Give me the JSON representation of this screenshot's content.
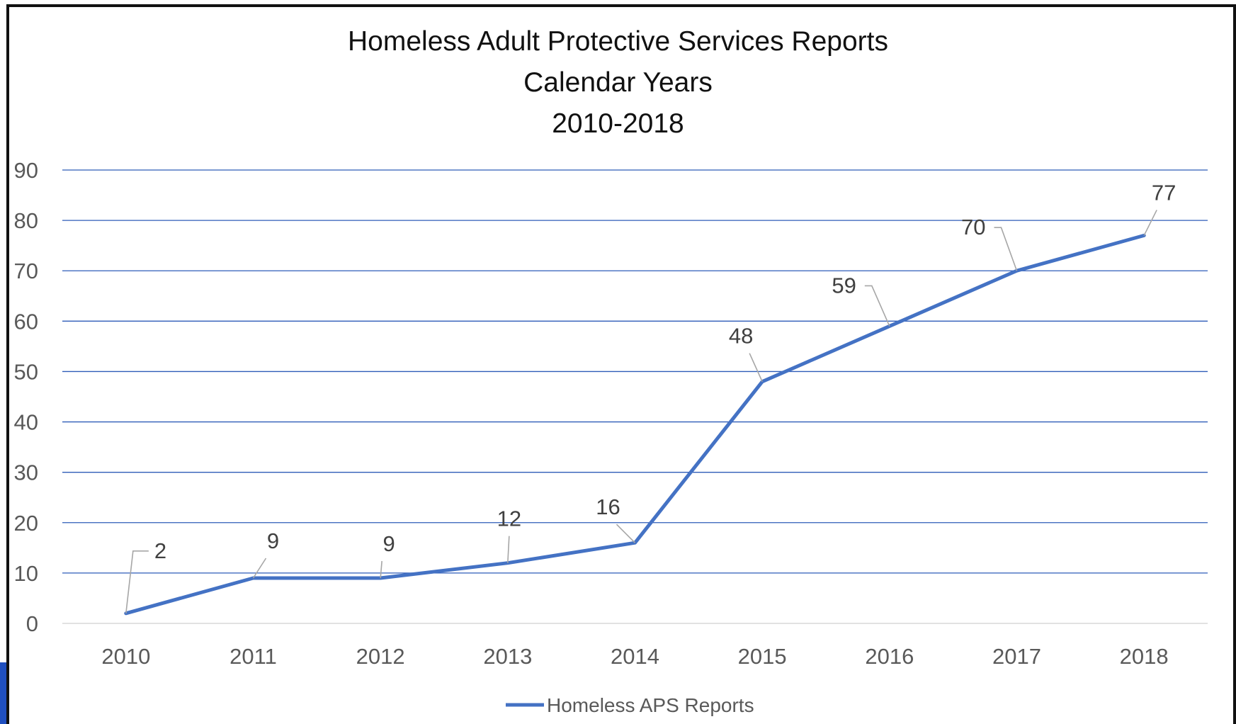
{
  "chart_data": {
    "type": "line",
    "title": [
      "Homeless Adult Protective Services Reports",
      "Calendar Years",
      "2010-2018"
    ],
    "xlabel": "",
    "ylabel": "",
    "categories": [
      "2010",
      "2011",
      "2012",
      "2013",
      "2014",
      "2015",
      "2016",
      "2017",
      "2018"
    ],
    "series": [
      {
        "name": "Homeless APS Reports",
        "values": [
          2,
          9,
          9,
          12,
          16,
          48,
          59,
          70,
          77
        ],
        "color": "#4472c4"
      }
    ],
    "ylim": [
      0,
      90
    ],
    "yticks": [
      "0",
      "10",
      "20",
      "30",
      "40",
      "50",
      "60",
      "70",
      "80",
      "90"
    ],
    "grid": true,
    "gridline_color": "#2e5cb8",
    "data_labels": true,
    "legend": {
      "position": "bottom",
      "entries": [
        "Homeless APS Reports"
      ]
    }
  }
}
